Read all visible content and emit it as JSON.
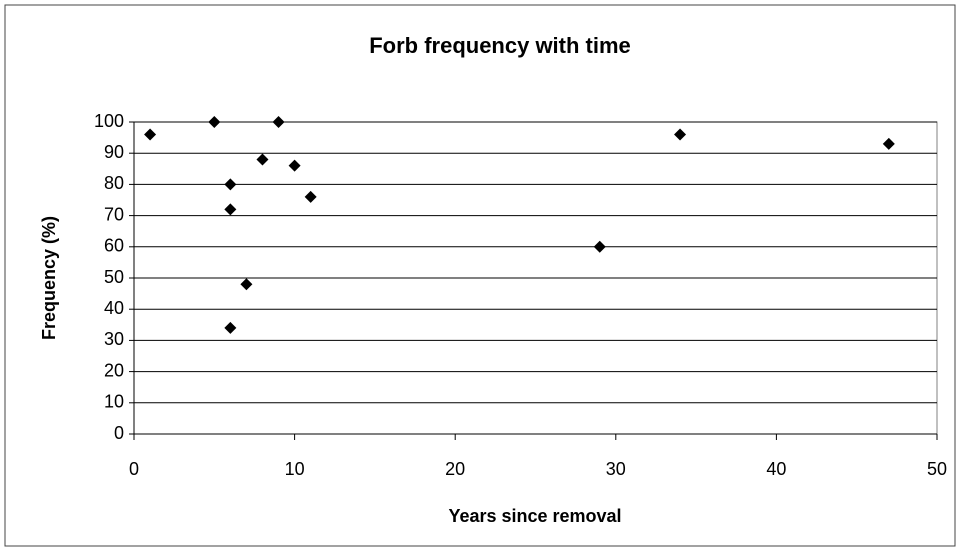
{
  "chart_data": {
    "type": "scatter",
    "title": "Forb frequency with time",
    "x_label": "Years since removal",
    "y_label": "Frequency (%)",
    "x": [
      1,
      5,
      9,
      8,
      10,
      6,
      6,
      11,
      7,
      6,
      29,
      34,
      47
    ],
    "values": [
      96,
      100,
      100,
      88,
      86,
      80,
      72,
      76,
      48,
      34,
      60,
      96,
      93
    ],
    "color": "#000000",
    "xlim": [
      0,
      50
    ],
    "xticks": [
      0,
      10,
      20,
      30,
      40,
      50
    ],
    "ylim": [
      0,
      100
    ],
    "yticks": [
      0,
      10,
      20,
      30,
      40,
      50,
      60,
      70,
      80,
      90,
      100
    ],
    "grid": true
  }
}
